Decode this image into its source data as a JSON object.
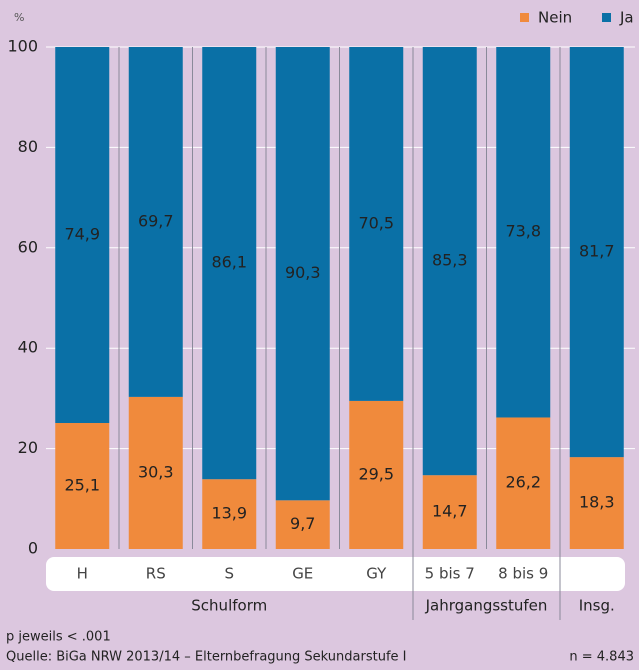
{
  "chart_data": {
    "type": "stacked_bar",
    "y_unit": "%",
    "categories": [
      "H",
      "RS",
      "S",
      "GE",
      "GY",
      "5 bis 7",
      "8 bis 9",
      null
    ],
    "groups": [
      {
        "name": "Schulform",
        "size": 5
      },
      {
        "name": "Jahrgangsstufen",
        "size": 2
      },
      {
        "name": "Insg.",
        "size": 1
      }
    ],
    "series": [
      {
        "name": "Nein",
        "color": "#f08a3c",
        "values": [
          25.1,
          30.3,
          13.9,
          9.7,
          29.5,
          14.7,
          26.2,
          18.3
        ],
        "value_labels": [
          "25,1",
          "30,3",
          "13,9",
          "9,7",
          "29,5",
          "14,7",
          "26,2",
          "18,3"
        ]
      },
      {
        "name": "Ja",
        "color": "#0a70a6",
        "values": [
          74.9,
          69.7,
          86.1,
          90.3,
          70.5,
          85.3,
          73.8,
          81.7
        ],
        "value_labels": [
          "74,9",
          "69,7",
          "86,1",
          "90,3",
          "70,5",
          "85,3",
          "73,8",
          "81,7"
        ]
      }
    ],
    "ylim": [
      0,
      100
    ],
    "yticks": [
      0,
      20,
      40,
      60,
      80,
      100
    ],
    "grid": true,
    "legend": "top-right",
    "notes": [
      "p jeweils < .001",
      "Quelle: BiGa NRW 2013/14 – Elternbefragung Sekundarstufe I",
      "n = 4.843"
    ]
  }
}
